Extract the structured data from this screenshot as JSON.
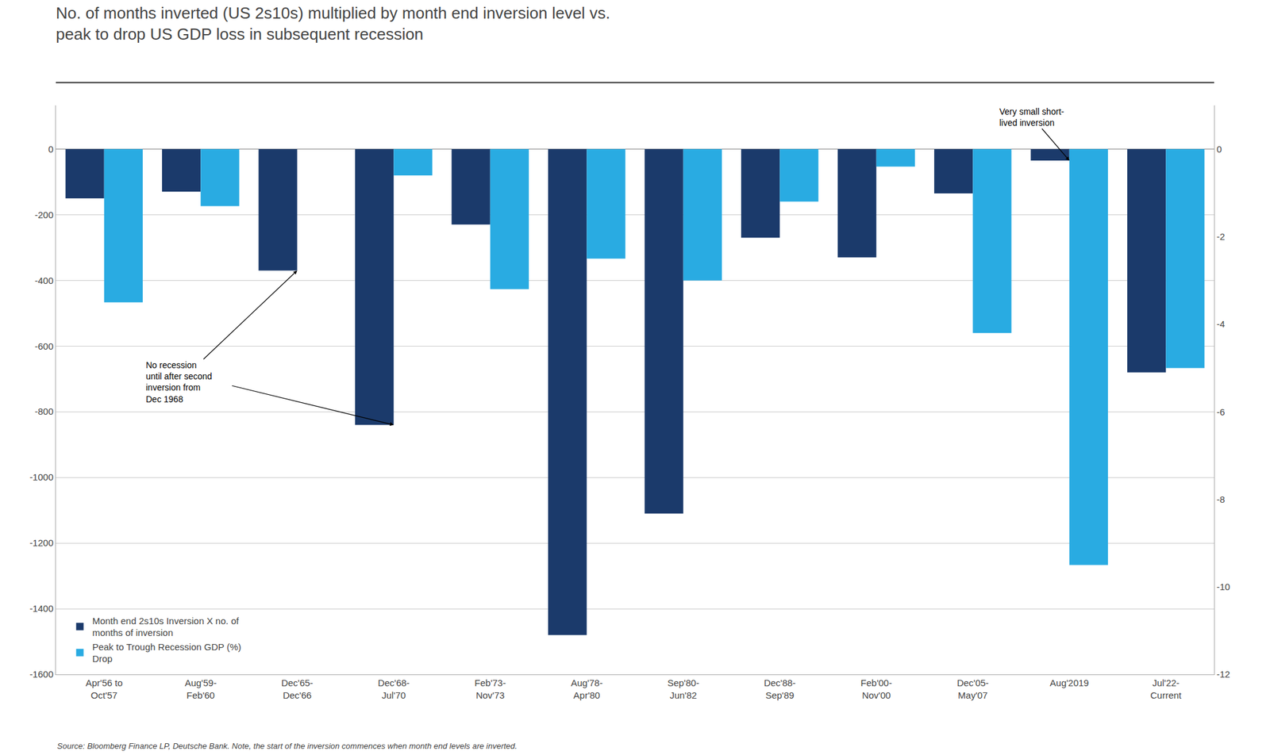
{
  "chart_data": {
    "type": "bar",
    "title": "No. of months inverted (US 2s10s) multiplied by month end inversion level vs.\npeak to drop US GDP loss in subsequent recession",
    "categories": [
      "Apr'56 to\nOct'57",
      "Aug'59-\nFeb'60",
      "Dec'65-\nDec'66",
      "Dec'68-\nJul'70",
      "Feb'73-\nNov'73",
      "Aug'78-\nApr'80",
      "Sep'80-\nJun'82",
      "Dec'88-\nSep'89",
      "Feb'00-\nNov'00",
      "Dec'05-\nMay'07",
      "Aug'2019",
      "Jul'22-\nCurrent"
    ],
    "series": [
      {
        "name": "Month end 2s10s Inversion X no. of\nmonths of inversion",
        "color": "#1B3A6B",
        "values": [
          -150,
          -130,
          -370,
          -840,
          -230,
          -1480,
          -1110,
          -270,
          -330,
          -135,
          -35,
          -680
        ]
      },
      {
        "name": "Peak to Trough Recession GDP (%)\nDrop",
        "color": "#29ABE2",
        "axis": "y2",
        "values": [
          -3.5,
          -1.3,
          0.0,
          -0.6,
          -3.2,
          -2.5,
          -3.0,
          -1.2,
          -0.4,
          -4.2,
          -9.5,
          -5.0
        ]
      }
    ],
    "ylim": [
      -1600,
      133
    ],
    "yticks": [
      0,
      -200,
      -400,
      -600,
      -800,
      -1000,
      -1200,
      -1400,
      -1600
    ],
    "y2lim": [
      -12.0,
      1.0
    ],
    "y2ticks": [
      0.0,
      -2.0,
      -4.0,
      -6.0,
      -8.0,
      -10.0,
      -12.0
    ],
    "grid": true,
    "legend": "lower left",
    "annotations": [
      {
        "text": "No recession\nuntil after second\ninversion from\nDec 1968",
        "categories": [
          "Dec'65-\nDec'66",
          "Dec'68-\nJul'70"
        ]
      },
      {
        "text": "Very small short-\nlived inversion",
        "categories": [
          "Aug'2019"
        ]
      }
    ],
    "source": "Source: Bloomberg Finance LP, Deutsche Bank. Note, the start of the inversion commences when month end levels are inverted."
  }
}
